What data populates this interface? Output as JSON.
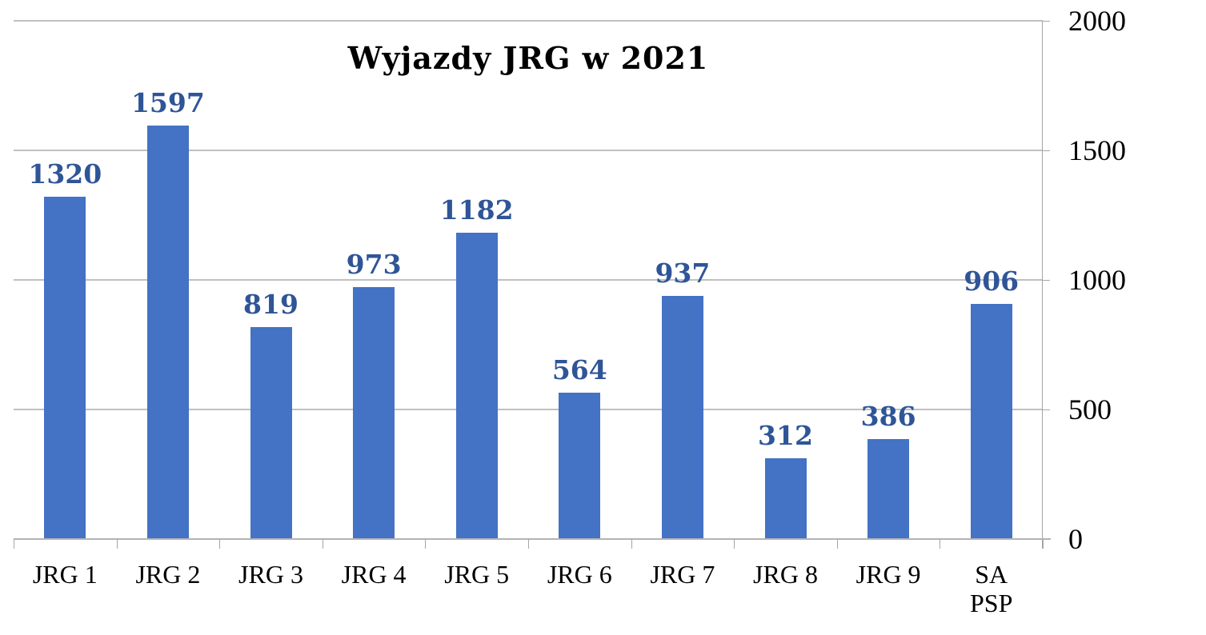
{
  "chart_data": {
    "type": "bar",
    "title": "Wyjazdy JRG w 2021",
    "categories": [
      "JRG 1",
      "JRG 2",
      "JRG 3",
      "JRG 4",
      "JRG 5",
      "JRG 6",
      "JRG 7",
      "JRG 8",
      "JRG 9",
      "SA PSP"
    ],
    "values": [
      1320,
      1597,
      819,
      973,
      1182,
      564,
      937,
      312,
      386,
      906
    ],
    "xlabel": "",
    "ylabel": "",
    "ylim": [
      0,
      2000
    ],
    "yticks": [
      0,
      500,
      1000,
      1500,
      2000
    ],
    "y_axis_position": "right",
    "grid": true,
    "legend": null,
    "data_labels": true,
    "colors": {
      "bar": "#4472C4",
      "data_label": "#2F5597",
      "gridline": "#c0c0c0"
    }
  },
  "display": {
    "title": "Wyjazdy JRG w 2021",
    "ytick_labels": [
      "0",
      "500",
      "1000",
      "1500",
      "2000"
    ],
    "xtick_labels": [
      "JRG 1",
      "JRG 2",
      "JRG 3",
      "JRG 4",
      "JRG 5",
      "JRG 6",
      "JRG 7",
      "JRG 8",
      "JRG 9",
      "SA\nPSP"
    ],
    "value_labels": [
      "1320",
      "1597",
      "819",
      "973",
      "1182",
      "564",
      "937",
      "312",
      "386",
      "906"
    ]
  }
}
